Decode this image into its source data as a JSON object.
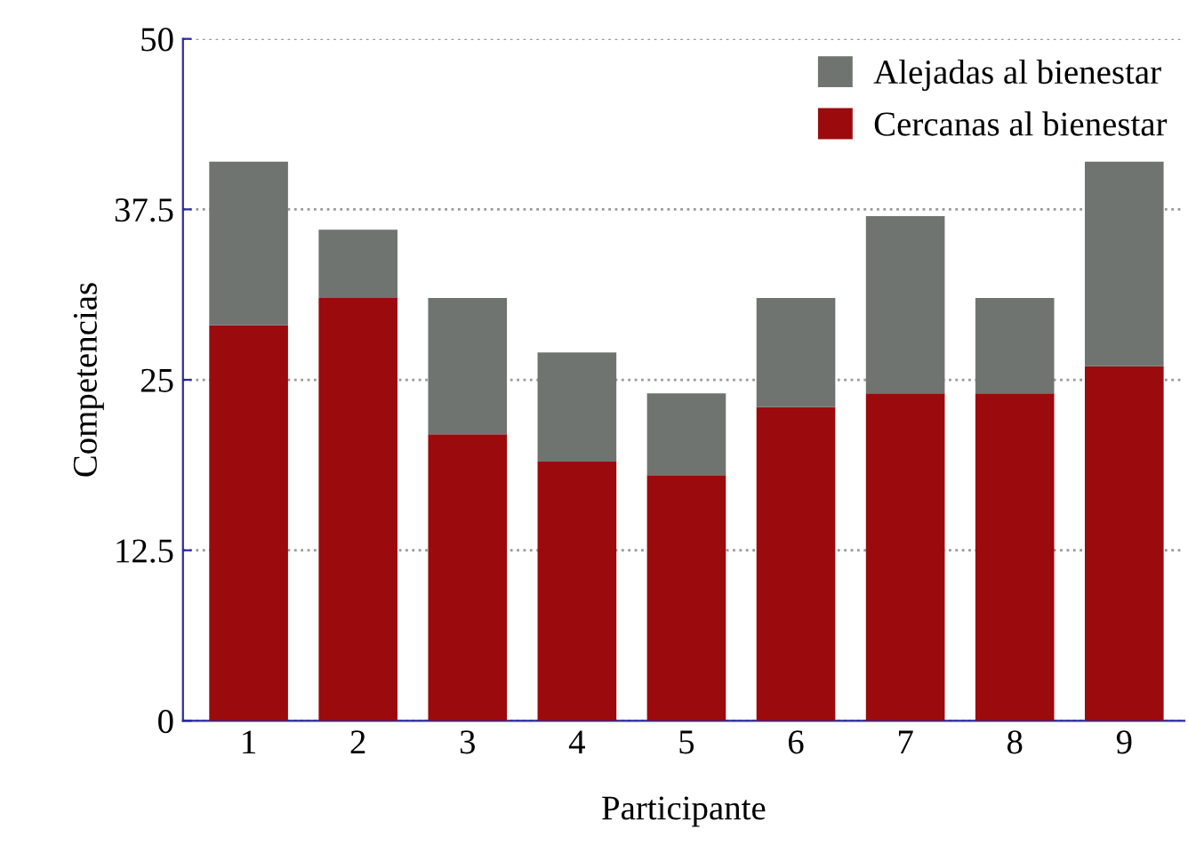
{
  "chart_data": {
    "type": "bar",
    "stacked": true,
    "xlabel": "Participante",
    "ylabel": "Competencias",
    "categories": [
      "1",
      "2",
      "3",
      "4",
      "5",
      "6",
      "7",
      "8",
      "9"
    ],
    "series": [
      {
        "name": "Cercanas al bienestar",
        "color": "#9b0a0d",
        "values": [
          29,
          31,
          21,
          19,
          18,
          23,
          24,
          24,
          26
        ]
      },
      {
        "name": "Alejadas al bienestar",
        "color": "#6f7470",
        "values": [
          12,
          5,
          10,
          8,
          6,
          8,
          13,
          7,
          15
        ]
      }
    ],
    "ylim": [
      0,
      50
    ],
    "yticks": [
      0,
      12.5,
      25,
      37.5,
      50
    ],
    "grid": "y",
    "legend": "top right"
  }
}
